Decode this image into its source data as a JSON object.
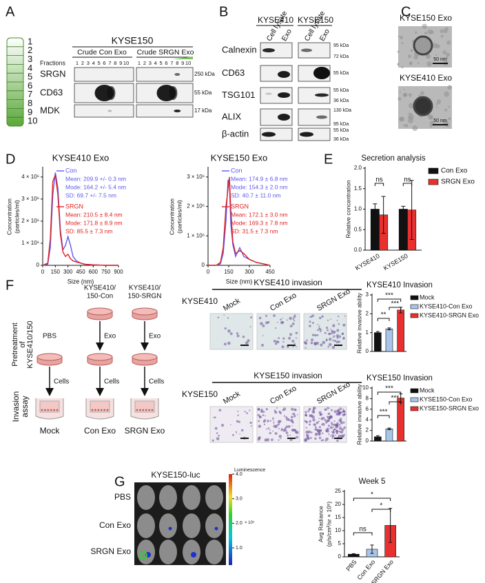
{
  "panel_labels": [
    "A",
    "B",
    "C",
    "D",
    "E",
    "F",
    "G"
  ],
  "fractionation": {
    "tube_numbers": [
      1,
      2,
      3,
      4,
      5,
      6,
      7,
      8,
      9,
      10
    ],
    "title": "KYSE150",
    "groups": [
      "Crude Con Exo",
      "Crude SRGN Exo"
    ],
    "fractions_label": "Fractions",
    "fractions": [
      1,
      2,
      3,
      4,
      5,
      6,
      7,
      8,
      9,
      10
    ],
    "blots": [
      {
        "name": "SRGN",
        "size": "250 kDa"
      },
      {
        "name": "CD63",
        "size": "55 kDa"
      },
      {
        "name": "MDK",
        "size": "17 kDa"
      }
    ]
  },
  "western": {
    "cell_lines": [
      "KYSE410",
      "KYSE150"
    ],
    "lanes": [
      "Cell lysate",
      "Exo"
    ],
    "blots": [
      {
        "name": "Calnexin",
        "sizes": [
          "95 kDa",
          "72 kDa"
        ]
      },
      {
        "name": "CD63",
        "sizes": [
          "55 kDa"
        ]
      },
      {
        "name": "TSG101",
        "sizes": [
          "55 kDa",
          "36 kDa"
        ]
      },
      {
        "name": "ALIX",
        "sizes": [
          "130 kDa",
          "95 kDa"
        ]
      },
      {
        "name": "β-actin",
        "sizes": [
          "55 kDa",
          "36 kDa"
        ]
      }
    ]
  },
  "tem": {
    "images": [
      {
        "title": "KYSE150 Exo",
        "scale": "50 nm"
      },
      {
        "title": "KYSE410 Exo",
        "scale": "50 nm"
      }
    ]
  },
  "invasion_scheme": {
    "columns": [
      {
        "treatment": "PBS",
        "step": "Cells",
        "label": "Mock"
      },
      {
        "source": [
          "KYSE410/",
          "150-Con"
        ],
        "treatment": "Exo",
        "step": "Cells",
        "label": "Con Exo"
      },
      {
        "source": [
          "KYSE410/",
          "150-SRGN"
        ],
        "treatment": "Exo",
        "step": "Cells",
        "label": "SRGN Exo"
      }
    ],
    "pretreatment": [
      "Pretreatment",
      "of",
      "KYSE410/150"
    ],
    "assay": [
      "Invasion",
      "assay"
    ]
  },
  "invasion_images": [
    {
      "title": "KYSE410 invasion",
      "cell_line": "KYSE410",
      "conditions": [
        "Mock",
        "Con Exo",
        "SRGN Exo"
      ]
    },
    {
      "title": "KYSE150 invasion",
      "cell_line": "KYSE150",
      "conditions": [
        "Mock",
        "Con Exo",
        "SRGN Exo"
      ]
    }
  ],
  "imaging": {
    "title": "KYSE150-luc",
    "groups": [
      "PBS",
      "Con Exo",
      "SRGN Exo"
    ],
    "colorbar": {
      "title": "Luminescence",
      "lim": [
        0.3,
        4.0
      ],
      "ticks": [
        {
          "value": 4,
          "label": "4.0"
        },
        {
          "value": 3,
          "label": "3.0"
        },
        {
          "value": 2,
          "label": "2.0"
        },
        {
          "value": 1,
          "label": "1.0"
        }
      ],
      "unit": "× 10⁵"
    }
  },
  "chart_data": [
    {
      "type": "line",
      "title": "KYSE410 Exo",
      "x_label": "Size (nm)",
      "y_label": [
        "Concentration",
        "(particles/ml)"
      ],
      "x": [
        0,
        60,
        90,
        120,
        150,
        180,
        210,
        240,
        270,
        300,
        330,
        360,
        400,
        450,
        500,
        600,
        750,
        900
      ],
      "xlim": [
        0,
        900
      ],
      "xticks": [
        0,
        150,
        300,
        450,
        600,
        750,
        900
      ],
      "ylim": [
        0,
        4400000
      ],
      "yticks": [
        0,
        {
          "value": 1000000,
          "label": "1 × 10⁶"
        },
        {
          "value": 2000000,
          "label": "2 × 10⁶"
        },
        {
          "value": 3000000,
          "label": "3 × 10⁶"
        },
        {
          "value": 4000000,
          "label": "4 × 10⁶"
        }
      ],
      "series": [
        {
          "name": "Con",
          "color": "#5a5af0",
          "values": [
            0,
            50000,
            800000,
            3200000,
            4200000,
            3500000,
            1600000,
            700000,
            900000,
            1300000,
            900000,
            400000,
            200000,
            100000,
            50000,
            20000,
            0,
            0
          ],
          "annotations": [
            "Mean: 209.9 +/- 0.3 nm",
            "Mode: 164.2 +/- 5.4 nm",
            "SD: 69.7 +/- 7.5 nm"
          ]
        },
        {
          "name": "SRGN",
          "color": "#e02020",
          "values": [
            0,
            100000,
            1200000,
            3800000,
            4100000,
            3200000,
            1400000,
            600000,
            400000,
            500000,
            300000,
            200000,
            150000,
            100000,
            50000,
            20000,
            0,
            0
          ],
          "annotations": [
            "Mean: 210.5 ± 8.4 nm",
            "Mode: 171.8 ± 8.9 nm",
            "SD: 85.5 ± 7.3 nm"
          ]
        }
      ]
    },
    {
      "type": "line",
      "title": "KYSE150 Exo",
      "x_label": "Size (nm)",
      "y_label": [
        "Concentration",
        "(particles/ml)"
      ],
      "x": [
        0,
        60,
        90,
        110,
        130,
        145,
        155,
        165,
        180,
        200,
        230,
        260,
        300,
        350,
        400,
        450
      ],
      "xlim": [
        0,
        450
      ],
      "xticks": [
        0,
        150,
        300,
        450
      ],
      "ylim": [
        0,
        3300000
      ],
      "yticks": [
        0,
        {
          "value": 1000000,
          "label": "1 × 10⁶"
        },
        {
          "value": 2000000,
          "label": "2 × 10⁶"
        },
        {
          "value": 3000000,
          "label": "3 × 10⁶"
        }
      ],
      "series": [
        {
          "name": "Con",
          "color": "#5a5af0",
          "values": [
            0,
            0,
            50000,
            400000,
            1500000,
            2900000,
            2800000,
            1400000,
            700000,
            300000,
            600000,
            300000,
            200000,
            100000,
            50000,
            0
          ],
          "annotations": [
            "Mean: 174.9 ± 6.8 nm",
            "Mode: 154.3 ± 2.0 nm",
            "SD: 40.7 ± 11.0 nm"
          ]
        },
        {
          "name": "SRGN",
          "color": "#e02020",
          "values": [
            0,
            0,
            100000,
            600000,
            2000000,
            2600000,
            3000000,
            1900000,
            800000,
            400000,
            500000,
            400000,
            200000,
            100000,
            50000,
            0
          ],
          "annotations": [
            "Mean: 172.1 ± 3.0 nm",
            "Mode: 169.3 ± 7.8 nm",
            "SD: 31.5 ± 7.3 nm"
          ]
        }
      ]
    },
    {
      "type": "bar",
      "title": "Secretion analysis",
      "y_label": "Relative concentration",
      "categories": [
        "KYSE410",
        "KYSE150"
      ],
      "series": [
        {
          "name": "Con Exo",
          "color": "#111111",
          "values": [
            1.0,
            1.0
          ],
          "errors": [
            0.13,
            0.07
          ]
        },
        {
          "name": "SRGN Exo",
          "color": "#e8312f",
          "values": [
            0.86,
            0.98
          ],
          "errors": [
            0.45,
            0.72
          ]
        }
      ],
      "ylim": [
        0,
        2
      ],
      "yticks": [
        {
          "value": 0,
          "label": "0.0"
        },
        0.5,
        {
          "value": 1,
          "label": "1.0"
        },
        1.5,
        {
          "value": 2,
          "label": "2.0"
        }
      ],
      "annotations": [
        "ns",
        "ns"
      ],
      "legend": "right"
    },
    {
      "type": "bar",
      "title": "KYSE410 Invasion",
      "y_label": "Relative invasive ability",
      "categories": [
        "Mock",
        "KYSE410-Con Exo",
        "KYSE410-SRGN Exo"
      ],
      "colors": [
        "#111111",
        "#a9c6ea",
        "#e8312f"
      ],
      "values": [
        1.0,
        1.2,
        2.2
      ],
      "errors": [
        0.06,
        0.05,
        0.15
      ],
      "ylim": [
        0,
        3
      ],
      "yticks": [
        0,
        1,
        2,
        3
      ],
      "annotations": [
        "**",
        "***",
        "***"
      ],
      "legend": "right"
    },
    {
      "type": "bar",
      "title": "KYSE150 Invasion",
      "y_label": "Relative invasive ability",
      "categories": [
        "Mock",
        "KYSE150-Con Exo",
        "KYSE150-SRGN Exo"
      ],
      "colors": [
        "#111111",
        "#a9c6ea",
        "#e8312f"
      ],
      "values": [
        0.8,
        2.3,
        8.1
      ],
      "errors": [
        0.2,
        0.15,
        0.8
      ],
      "ylim": [
        0,
        10
      ],
      "yticks": [
        0,
        2,
        4,
        6,
        8,
        10
      ],
      "annotations": [
        "***",
        "***",
        "***"
      ],
      "legend": "right"
    },
    {
      "type": "bar",
      "title": "Week 5",
      "y_label": [
        "Avg Radiance",
        "(p/s/cm²/sr × 10⁵)"
      ],
      "categories": [
        "PBS",
        "Con Exo",
        "SRGN Exo"
      ],
      "colors": [
        "#111111",
        "#a9c6ea",
        "#e8312f"
      ],
      "values": [
        1.0,
        2.9,
        12.0
      ],
      "errors": [
        0.2,
        1.6,
        6.5
      ],
      "ylim": [
        0,
        25
      ],
      "yticks": [
        0,
        5,
        10,
        15,
        20,
        25
      ],
      "annotations": [
        "ns",
        "*",
        "*"
      ]
    }
  ]
}
